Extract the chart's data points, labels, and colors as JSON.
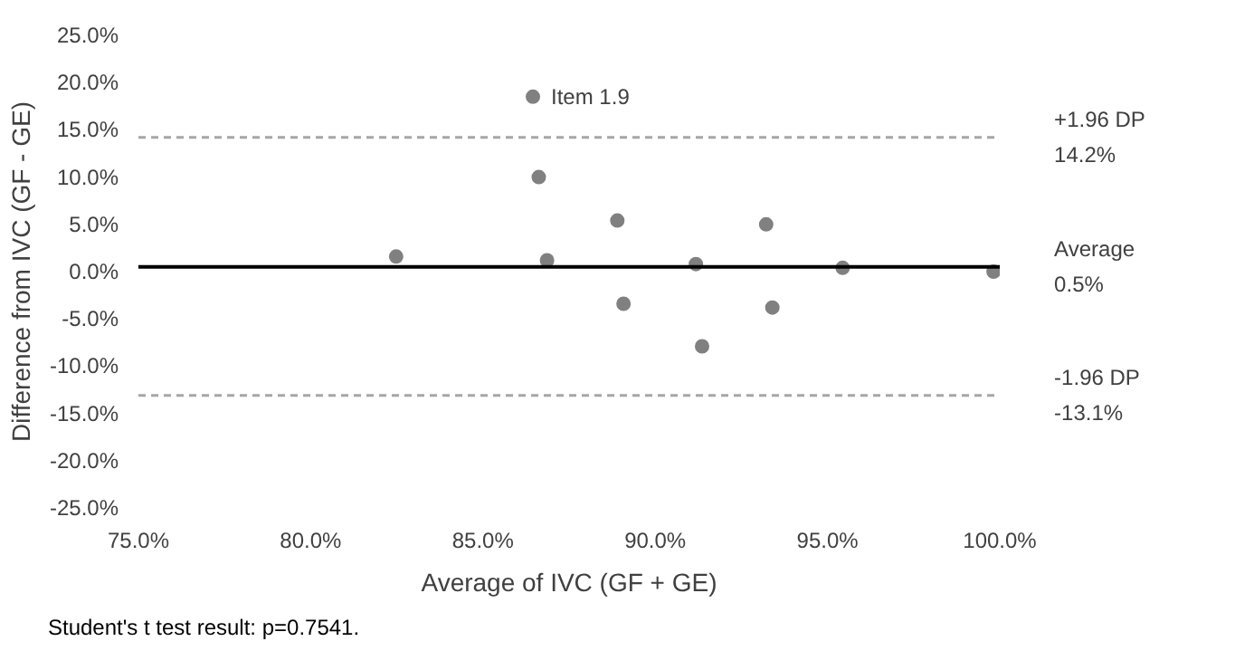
{
  "chart_data": {
    "type": "scatter",
    "xlabel": "Average of IVC (GF + GE)",
    "ylabel": "Difference from IVC (GF - GE)",
    "x": [
      82.48,
      86.45,
      86.62,
      86.86,
      88.9,
      89.08,
      91.18,
      91.36,
      93.22,
      93.4,
      95.44,
      99.82
    ],
    "values": [
      1.6,
      18.5,
      10.0,
      1.2,
      5.4,
      -3.4,
      0.8,
      -7.9,
      5.0,
      -3.8,
      0.4,
      0.0
    ],
    "color": "#808080",
    "marker": "circle",
    "grid": false,
    "xlim": [
      75,
      100
    ],
    "xticks": [
      {
        "value": 75,
        "label": "75.0%"
      },
      {
        "value": 80,
        "label": "80.0%"
      },
      {
        "value": 85,
        "label": "85.0%"
      },
      {
        "value": 90,
        "label": "90.0%"
      },
      {
        "value": 95,
        "label": "95.0%"
      },
      {
        "value": 100,
        "label": "100.0%"
      }
    ],
    "ylim": [
      -25,
      25
    ],
    "yticks": [
      {
        "value": -25,
        "label": "-25.0%"
      },
      {
        "value": -20,
        "label": "-20.0%"
      },
      {
        "value": -15,
        "label": "-15.0%"
      },
      {
        "value": -10,
        "label": "-10.0%"
      },
      {
        "value": -5,
        "label": "-5.0%"
      },
      {
        "value": 0,
        "label": "0.0%"
      },
      {
        "value": 5,
        "label": "5.0%"
      },
      {
        "value": 10,
        "label": "10.0%"
      },
      {
        "value": 15,
        "label": "15.0%"
      },
      {
        "value": 20,
        "label": "20.0%"
      },
      {
        "value": 25,
        "label": "25.0%"
      }
    ],
    "ref_lines": [
      {
        "axis": "y",
        "value": 14.2,
        "label": "+1.96 DP\n14.2%",
        "color": "#a6a6a6",
        "line_style": "dashed"
      },
      {
        "axis": "y",
        "value": 0.5,
        "label": "Average\n0.5%",
        "color": "#000000",
        "line_style": "solid"
      },
      {
        "axis": "y",
        "value": -13.1,
        "label": "-1.96 DP\n-13.1%",
        "color": "#a6a6a6",
        "line_style": "dashed"
      }
    ],
    "annotations": [
      {
        "text": "Item 1.9",
        "x": 86.45,
        "y": 18.5
      },
      "Student's t test result: p=0.7541."
    ]
  }
}
